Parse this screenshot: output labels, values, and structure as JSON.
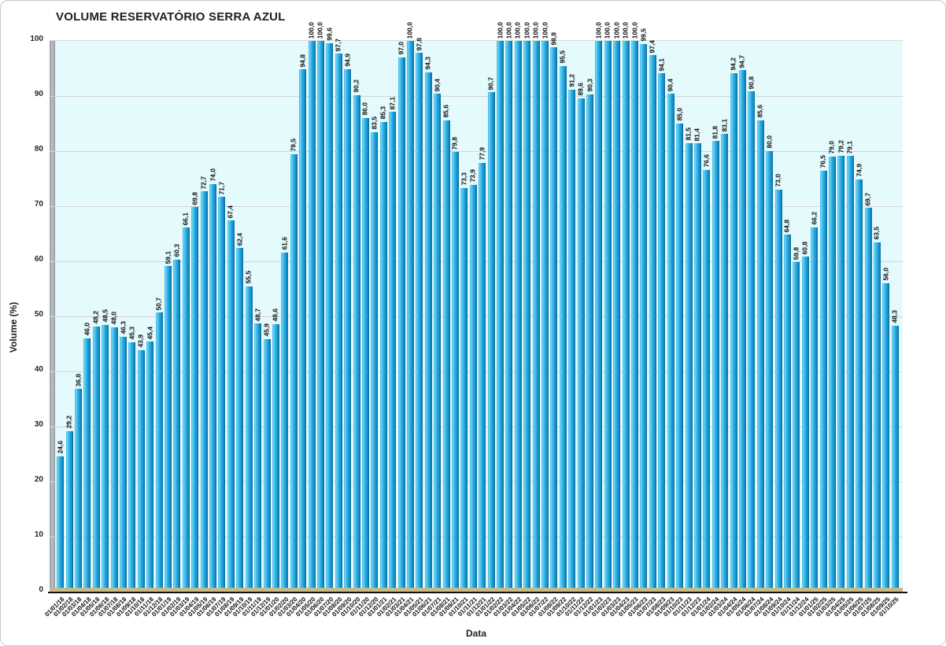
{
  "title": "VOLUME RESERVATÓRIO SERRA AZUL",
  "xaxis_title": "Data",
  "yaxis_title": "Volume (%)",
  "chart_data": {
    "type": "bar",
    "title": "VOLUME RESERVATÓRIO SERRA AZUL",
    "xlabel": "Data",
    "ylabel": "Volume (%)",
    "ylim": [
      0,
      100
    ],
    "ytick_step": 10,
    "grid": true,
    "legend": "none",
    "decimal_separator": ",",
    "bar_color": "#2aace3",
    "plot_background": "#e4fafd",
    "floor_color": "#c4ba8a",
    "categories": [
      "01/01/18",
      "01/02/18",
      "01/03/18",
      "01/04/18",
      "01/05/18",
      "01/06/18",
      "01/07/18",
      "01/08/18",
      "01/09/18",
      "01/10/18",
      "01/11/18",
      "01/12/18",
      "01/01/19",
      "01/02/19",
      "01/03/19",
      "01/04/19",
      "01/05/19",
      "01/06/19",
      "01/07/19",
      "01/08/19",
      "01/09/19",
      "01/10/19",
      "01/11/19",
      "01/12/19",
      "01/01/20",
      "01/02/20",
      "01/03/20",
      "01/04/20",
      "01/05/20",
      "01/06/20",
      "01/07/20",
      "01/08/20",
      "01/09/20",
      "01/10/20",
      "01/11/20",
      "01/12/20",
      "01/01/21",
      "01/02/21",
      "01/03/21",
      "01/04/21",
      "01/05/21",
      "01/06/21",
      "01/07/21",
      "01/08/21",
      "01/09/21",
      "01/10/21",
      "01/11/21",
      "01/12/21",
      "01/01/22",
      "01/02/22",
      "01/03/22",
      "01/04/22",
      "01/05/22",
      "01/06/22",
      "01/07/22",
      "01/08/22",
      "01/09/22",
      "01/10/22",
      "01/11/22",
      "01/12/22",
      "01/01/23",
      "01/02/23",
      "01/03/23",
      "01/04/23",
      "01/05/23",
      "01/06/23",
      "01/07/23",
      "01/08/23",
      "01/09/23",
      "01/10/23",
      "01/11/23",
      "01/12/23",
      "01/01/24",
      "01/02/24",
      "01/03/24",
      "01/04/24",
      "01/05/24",
      "01/06/24",
      "01/07/24",
      "01/08/24",
      "01/09/24",
      "01/10/24",
      "01/11/24",
      "01/12/24",
      "01/01/25",
      "01/02/25",
      "01/03/25",
      "01/04/25",
      "01/05/25",
      "01/06/25",
      "01/07/25",
      "01/08/25",
      "01/09/25",
      "01/10/25"
    ],
    "values": [
      24.6,
      29.2,
      36.8,
      46.0,
      48.2,
      48.5,
      48.0,
      46.3,
      45.3,
      43.9,
      45.4,
      50.7,
      59.1,
      60.3,
      66.1,
      69.8,
      72.7,
      74.0,
      71.7,
      67.4,
      62.4,
      55.5,
      48.7,
      45.9,
      48.6,
      61.6,
      79.5,
      94.8,
      100.0,
      100.0,
      99.6,
      97.7,
      94.9,
      90.2,
      86.0,
      83.5,
      85.3,
      87.1,
      97.0,
      100.0,
      97.8,
      94.3,
      90.4,
      85.6,
      79.8,
      73.3,
      73.9,
      77.9,
      90.7,
      100.0,
      100.0,
      100.0,
      100.0,
      100.0,
      100.0,
      98.8,
      95.5,
      91.2,
      89.6,
      90.3,
      100.0,
      100.0,
      100.0,
      100.0,
      100.0,
      99.5,
      97.4,
      94.1,
      90.4,
      85.0,
      81.5,
      81.4,
      76.6,
      81.8,
      83.1,
      94.2,
      94.7,
      90.8,
      85.6,
      80.0,
      73.0,
      64.8,
      59.8,
      60.8,
      66.2,
      76.5,
      79.0,
      79.2,
      79.1,
      74.9,
      69.7,
      63.5,
      56.0,
      48.3
    ]
  }
}
